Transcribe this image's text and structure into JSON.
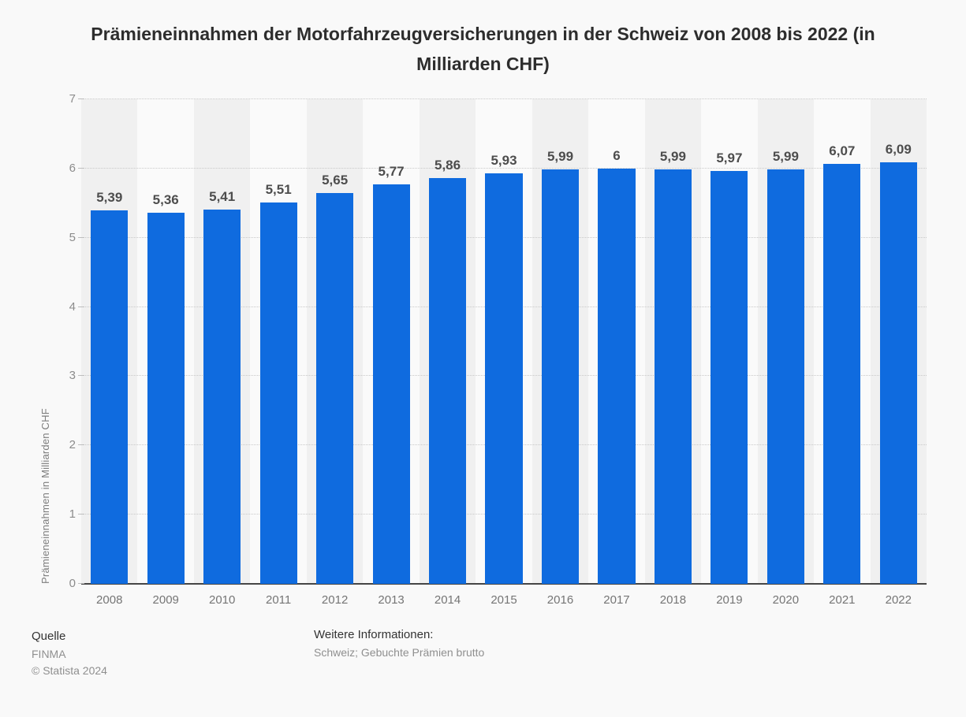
{
  "title": "Prämieneinnahmen der Motorfahrzeugversicherungen in der Schweiz von 2008 bis 2022 (in Milliarden CHF)",
  "chart_data": {
    "type": "bar",
    "categories": [
      "2008",
      "2009",
      "2010",
      "2011",
      "2012",
      "2013",
      "2014",
      "2015",
      "2016",
      "2017",
      "2018",
      "2019",
      "2020",
      "2021",
      "2022"
    ],
    "values": [
      5.39,
      5.36,
      5.41,
      5.51,
      5.65,
      5.77,
      5.86,
      5.93,
      5.99,
      6,
      5.99,
      5.97,
      5.99,
      6.07,
      6.09
    ],
    "value_labels": [
      "5,39",
      "5,36",
      "5,41",
      "5,51",
      "5,65",
      "5,77",
      "5,86",
      "5,93",
      "5,99",
      "6",
      "5,99",
      "5,97",
      "5,99",
      "6,07",
      "6,09"
    ],
    "title": "Prämieneinnahmen der Motorfahrzeugversicherungen in der Schweiz von 2008 bis 2022 (in Milliarden CHF)",
    "xlabel": "",
    "ylabel": "Prämieneinnahmen in Milliarden CHF",
    "ylim": [
      0,
      7
    ],
    "yticks": [
      "0",
      "1",
      "2",
      "3",
      "4",
      "5",
      "6",
      "7"
    ],
    "grid": "horizontal-dotted",
    "legend": "none",
    "background_bands": "alternating-vertical"
  },
  "colors": {
    "bar": "#0f6bdf",
    "page_background": "#f9f9f9",
    "band_dark": "#f0f0f0",
    "band_light": "#fafafa",
    "gridline": "#c9c9c9",
    "axis_line": "#454545",
    "value_label": "#4d4d4d",
    "tick_label": "#8c8c8c"
  },
  "footer": {
    "source_heading": "Quelle",
    "source_name": "FINMA",
    "copyright": "© Statista 2024",
    "info_heading": "Weitere Informationen:",
    "info_text": "Schweiz; Gebuchte Prämien brutto"
  }
}
